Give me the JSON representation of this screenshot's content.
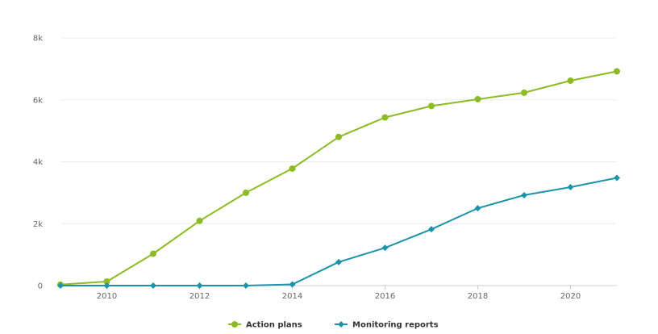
{
  "chart_data": {
    "type": "line",
    "x": [
      2009,
      2010,
      2011,
      2012,
      2013,
      2014,
      2015,
      2016,
      2017,
      2018,
      2019,
      2020,
      2021
    ],
    "xticks": [
      2010,
      2012,
      2014,
      2016,
      2018,
      2020
    ],
    "xlim": [
      2009,
      2021
    ],
    "ylim": [
      0,
      8000
    ],
    "yticks": [
      {
        "value": 0,
        "label": "0"
      },
      {
        "value": 2000,
        "label": "2k"
      },
      {
        "value": 4000,
        "label": "4k"
      },
      {
        "value": 6000,
        "label": "6k"
      },
      {
        "value": 8000,
        "label": "8k"
      }
    ],
    "grid": true,
    "legend_position": "bottom-center",
    "series": [
      {
        "name": "Action plans",
        "color": "#8dbb25",
        "marker": "circle",
        "values": [
          30,
          130,
          1030,
          2090,
          3000,
          3780,
          4800,
          5430,
          5800,
          6020,
          6230,
          6620,
          6920
        ]
      },
      {
        "name": "Monitoring reports",
        "color": "#1d93a9",
        "marker": "diamond",
        "values": [
          0,
          0,
          0,
          0,
          0,
          40,
          760,
          1220,
          1820,
          2500,
          2920,
          3180,
          3480
        ]
      }
    ]
  }
}
